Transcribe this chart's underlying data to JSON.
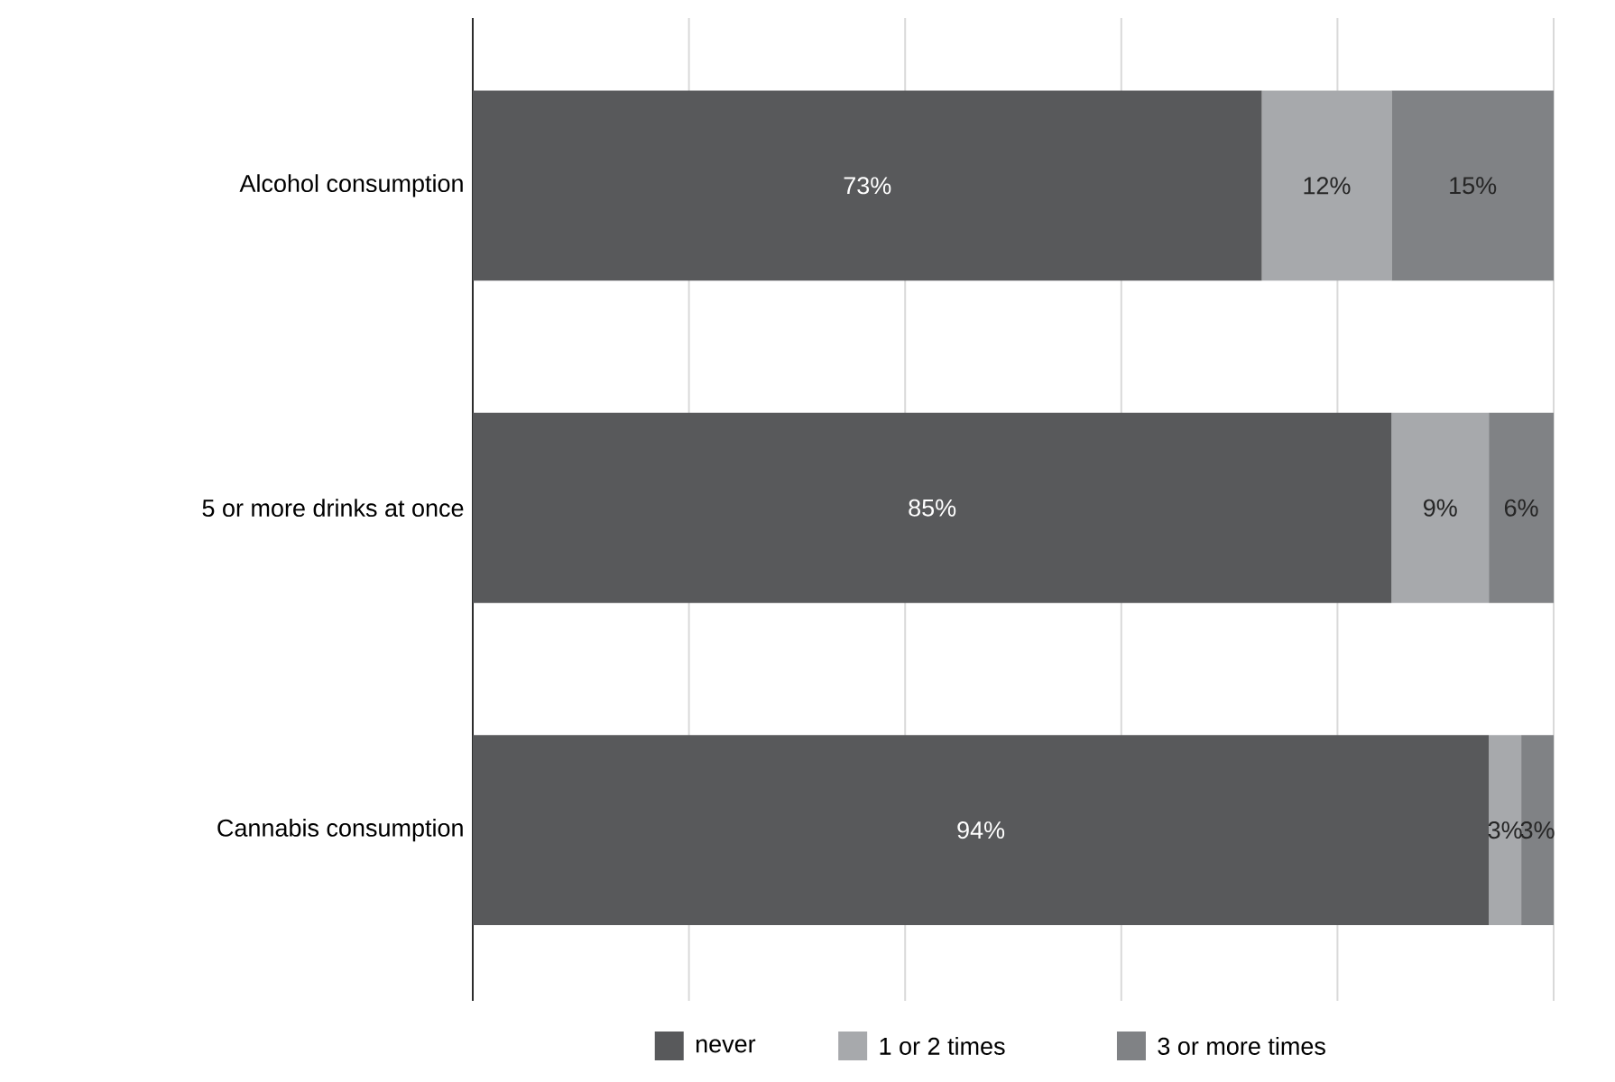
{
  "chart_data": {
    "type": "bar",
    "orientation": "horizontal",
    "stacked": true,
    "categories": [
      "Alcohol consumption",
      "5 or more drinks at once",
      "Cannabis consumption"
    ],
    "series": [
      {
        "name": "never",
        "color": "#58595b",
        "values": [
          73,
          85,
          94
        ],
        "value_labels": [
          "73%",
          "85%",
          "94%"
        ]
      },
      {
        "name": "1 or 2 times",
        "color": "#a7a9ac",
        "values": [
          12,
          9,
          3
        ],
        "value_labels": [
          "12%",
          "9%",
          "3%"
        ]
      },
      {
        "name": "3 or more times",
        "color": "#808285",
        "values": [
          15,
          6,
          3
        ],
        "value_labels": [
          "15%",
          "6%",
          "3%"
        ]
      }
    ],
    "xlim": [
      0,
      100
    ],
    "xticks": [
      {
        "value": 0,
        "label": null
      },
      {
        "value": 20,
        "label": null
      },
      {
        "value": 40,
        "label": null
      },
      {
        "value": 60,
        "label": null
      },
      {
        "value": 80,
        "label": null
      },
      {
        "value": 100,
        "label": null
      }
    ],
    "tick_labels": "y",
    "grid": "x",
    "legend": "bottom"
  }
}
